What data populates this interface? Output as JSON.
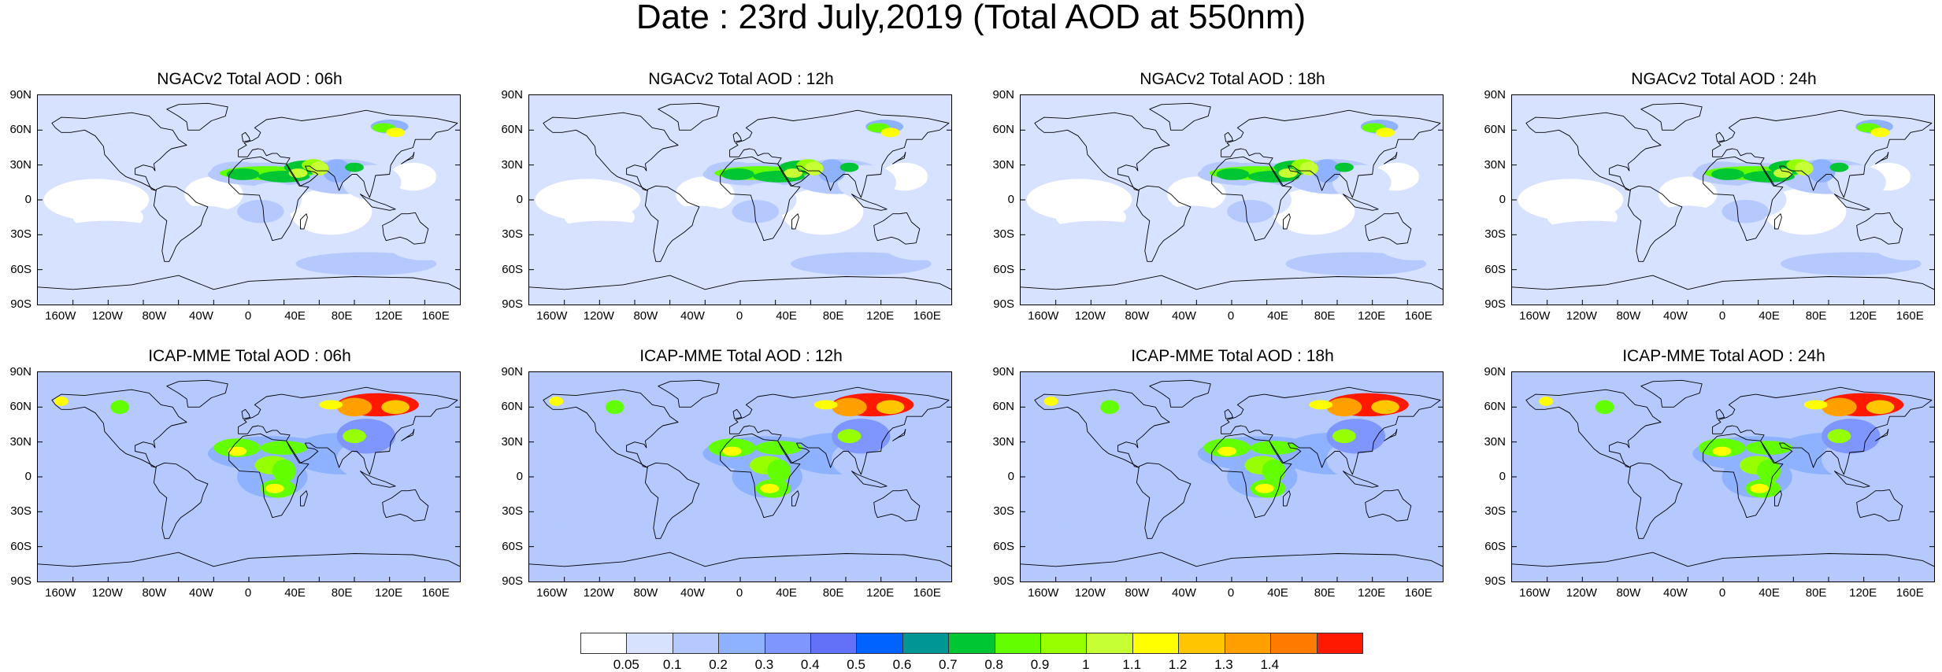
{
  "title": "Date : 23rd July,2019 (Total AOD at 550nm)",
  "lat_labels": [
    "90N",
    "60N",
    "30N",
    "0",
    "30S",
    "60S",
    "90S"
  ],
  "lon_labels": [
    "160W",
    "120W",
    "80W",
    "40W",
    "0",
    "40E",
    "80E",
    "120E",
    "160E"
  ],
  "panels": [
    {
      "title": "NGACv2 Total AOD : 06h",
      "model": "ngac"
    },
    {
      "title": "NGACv2 Total AOD : 12h",
      "model": "ngac"
    },
    {
      "title": "NGACv2 Total AOD : 18h",
      "model": "ngac"
    },
    {
      "title": "NGACv2 Total AOD : 24h",
      "model": "ngac"
    },
    {
      "title": "ICAP-MME Total AOD : 06h",
      "model": "icap"
    },
    {
      "title": "ICAP-MME Total AOD : 12h",
      "model": "icap"
    },
    {
      "title": "ICAP-MME Total AOD : 18h",
      "model": "icap"
    },
    {
      "title": "ICAP-MME Total AOD : 24h",
      "model": "icap"
    }
  ],
  "colorbar": {
    "colors": [
      "#ffffff",
      "#d6e2ff",
      "#b5c9ff",
      "#8eb2ff",
      "#7f96ff",
      "#6370f8",
      "#0063ff",
      "#009696",
      "#00c633",
      "#63ff00",
      "#96ff00",
      "#c6ff33",
      "#ffff00",
      "#ffc600",
      "#ffa000",
      "#ff7c00",
      "#ff1900"
    ],
    "labels": [
      "0.05",
      "0.1",
      "0.2",
      "0.3",
      "0.4",
      "0.5",
      "0.6",
      "0.7",
      "0.8",
      "0.9",
      "1",
      "1.1",
      "1.2",
      "1.3",
      "1.4"
    ]
  }
}
